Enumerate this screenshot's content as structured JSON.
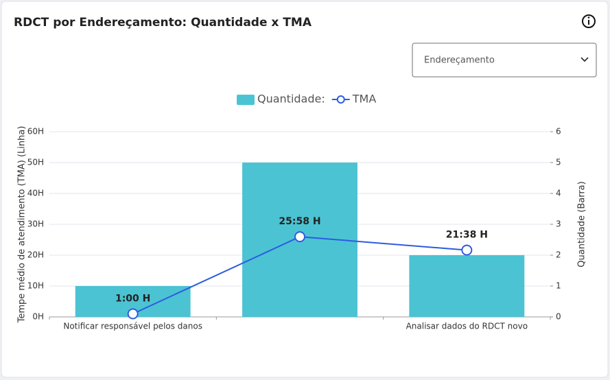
{
  "dropdown": "Endereçamento",
  "chart_data": {
    "type": "bar",
    "title": "RDCT por Endereçamento: Quantidade x TMA",
    "categories": [
      "Notificar responsável pelos danos",
      null,
      "Analisar dados do RDCT novo"
    ],
    "series": [
      {
        "name": "Quantidade:",
        "type": "bar",
        "color": "#4bc3d3",
        "axis": "y2",
        "values": [
          1,
          5,
          2
        ]
      },
      {
        "name": "TMA",
        "type": "line",
        "color": "#2c5be0",
        "values": [
          1,
          25.967,
          21.633
        ],
        "value_labels": [
          "1:00 H",
          "25:58 H",
          "21:38 H"
        ]
      }
    ],
    "ylabel": "Tempe médio de atendimento (TMA) (Linha)",
    "y2label": "Quantidade (Barra)",
    "ylim": [
      0,
      60
    ],
    "yticks": [
      {
        "value": 0,
        "label": "0H"
      },
      {
        "value": 10,
        "label": "10H"
      },
      {
        "value": 20,
        "label": "20H"
      },
      {
        "value": 30,
        "label": "30H"
      },
      {
        "value": 40,
        "label": "40H"
      },
      {
        "value": 50,
        "label": "50H"
      },
      {
        "value": 60,
        "label": "60H"
      }
    ],
    "y2lim": [
      0,
      6
    ],
    "y2ticks": [
      0,
      1,
      2,
      3,
      4,
      5,
      6
    ],
    "grid": true
  }
}
